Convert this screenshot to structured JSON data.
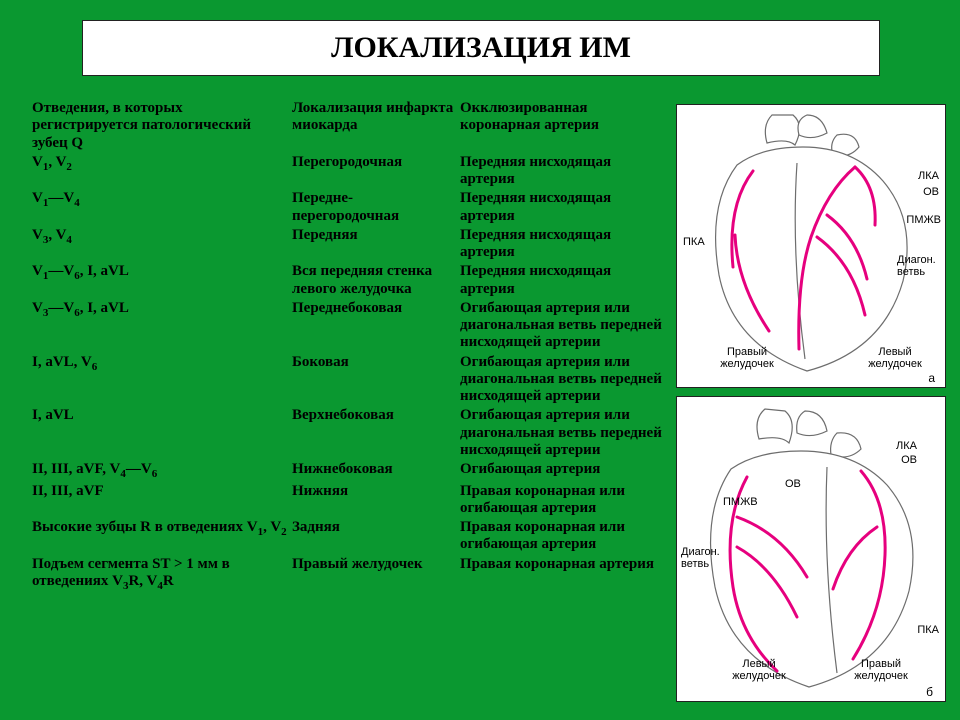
{
  "title": "ЛОКАЛИЗАЦИЯ ИМ",
  "headers": {
    "col0": "Отведения, в которых регистрируется патологический зубец Q",
    "col1": "Локализация инфаркта миокарда",
    "col2": "Окклюзированная коронарная артерия"
  },
  "rows": [
    {
      "c0_html": "V<sub>1</sub>, V<sub>2</sub>",
      "c1": "Перегородочная",
      "c2": "Передняя нисходящая артерия"
    },
    {
      "c0_html": "V<sub>1</sub>—V<sub>4</sub>",
      "c1": "Передне-перегородочная",
      "c2": "Передняя нисходящая артерия"
    },
    {
      "c0_html": "V<sub>3</sub>, V<sub>4</sub>",
      "c1": "Передняя",
      "c2": "Передняя нисходящая артерия"
    },
    {
      "c0_html": "V<sub>1</sub>—V<sub>6</sub>, I, aVL",
      "c1": "Вся передняя стенка левого желудочка",
      "c2": "Передняя нисходящая артерия"
    },
    {
      "c0_html": "V<sub>3</sub>—V<sub>6</sub>, I, aVL",
      "c1": "Переднебоковая",
      "c2": "Огибающая артерия или диагональная ветвь передней нисходящей артерии"
    },
    {
      "c0_html": "I, aVL, V<sub>6</sub>",
      "c1": "Боковая",
      "c2": "Огибающая артерия или диагональная ветвь передней нисходящей артерии"
    },
    {
      "c0_html": "I, aVL",
      "c1": "Верхнебоковая",
      "c2": "Огибающая артерия или диагональная ветвь передней нисходящей артерии"
    },
    {
      "c0_html": "II, III, aVF, V<sub>4</sub>—V<sub>6</sub>",
      "c1": "Нижнебоковая",
      "c2": "Огибающая артерия"
    },
    {
      "c0_html": "II, III, aVF",
      "c1": "Нижняя",
      "c2": "Правая коронарная или огибающая артерия"
    },
    {
      "c0_html": "Высокие зубцы R в отведениях V<sub>1</sub>, V<sub>2</sub>",
      "c1": "Задняя",
      "c2": "Правая коронарная или огибающая артерия"
    },
    {
      "c0_html": "Подъем сегмента ST > 1 мм в отведениях V<sub>3</sub>R, V<sub>4</sub>R",
      "c1": "Правый желудочек",
      "c2": "Правая коронарная артерия"
    }
  ],
  "diagram_a": {
    "tag": "а",
    "heart_fill": "#ffffff",
    "heart_stroke": "#6d6d6d",
    "artery_color": "#e6007e",
    "labels": {
      "lka": "ЛКА",
      "ov": "ОВ",
      "pmzhv": "ПМЖВ",
      "diag": "Диагон. ветвь",
      "pka": "ПКА",
      "right_v": "Правый желудочек",
      "left_v": "Левый желудочек"
    }
  },
  "diagram_b": {
    "tag": "б",
    "heart_fill": "#ffffff",
    "heart_stroke": "#6d6d6d",
    "artery_color": "#e6007e",
    "labels": {
      "lka": "ЛКА",
      "ov_top": "ОВ",
      "ov_side": "ОВ",
      "pmzhv": "ПМЖВ",
      "diag": "Диагон. ветвь",
      "pka": "ПКА",
      "left_v": "Левый желудочек",
      "right_v": "Правый желудочек"
    }
  },
  "colors": {
    "background": "#0a9830",
    "title_bg": "#ffffff",
    "text": "#000000"
  }
}
